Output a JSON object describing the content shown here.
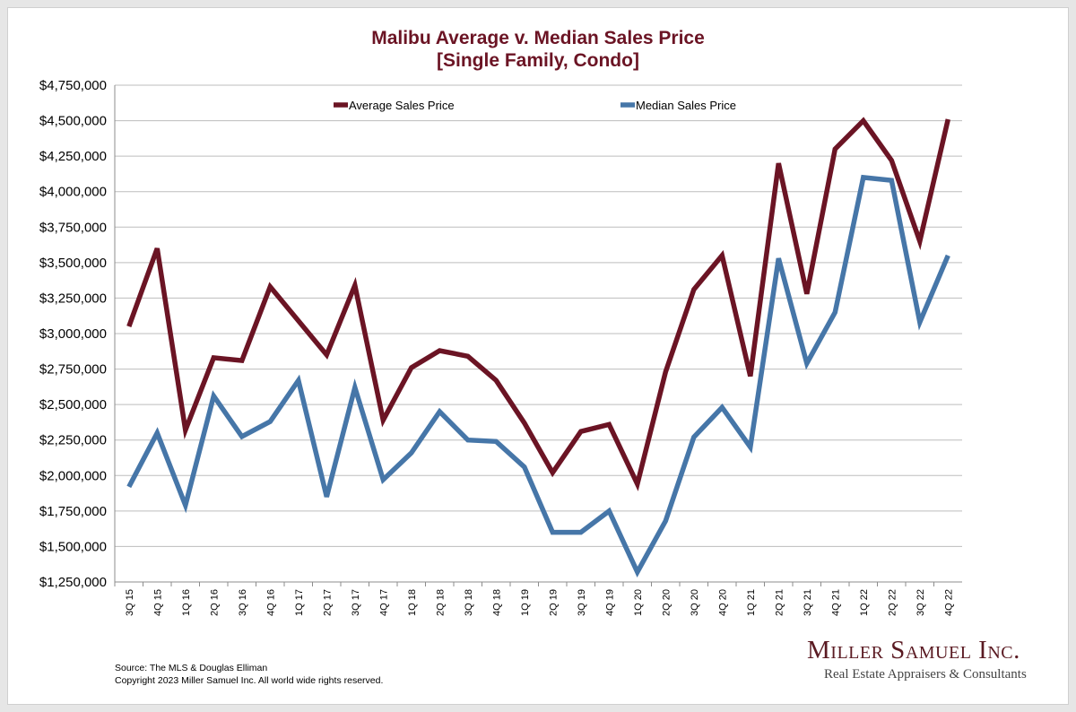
{
  "chart_data": {
    "type": "line",
    "title": "Malibu Average v. Median Sales Price",
    "subtitle": "[Single Family, Condo]",
    "categories": [
      "3Q 15",
      "4Q 15",
      "1Q 16",
      "2Q 16",
      "3Q 16",
      "4Q 16",
      "1Q 17",
      "2Q 17",
      "3Q 17",
      "4Q 17",
      "1Q 18",
      "2Q 18",
      "3Q 18",
      "4Q 18",
      "1Q 19",
      "2Q 19",
      "3Q 19",
      "4Q 19",
      "1Q 20",
      "2Q 20",
      "3Q 20",
      "4Q 20",
      "1Q 21",
      "2Q 21",
      "3Q 21",
      "4Q 21",
      "1Q 22",
      "2Q 22",
      "3Q 22",
      "4Q 22"
    ],
    "series": [
      {
        "name": "Average Sales Price",
        "color": "#6b1424",
        "values": [
          3050000,
          3600000,
          2320000,
          2830000,
          2810000,
          3330000,
          3090000,
          2850000,
          3340000,
          2390000,
          2760000,
          2880000,
          2840000,
          2670000,
          2370000,
          2020000,
          2310000,
          2360000,
          1940000,
          2730000,
          3310000,
          3550000,
          2700000,
          4200000,
          3280000,
          4300000,
          4500000,
          4220000,
          3650000,
          4510000
        ]
      },
      {
        "name": "Median Sales Price",
        "color": "#4676a8",
        "values": [
          1920000,
          2300000,
          1790000,
          2560000,
          2275000,
          2380000,
          2670000,
          1850000,
          2620000,
          1970000,
          2160000,
          2450000,
          2250000,
          2240000,
          2060000,
          1600000,
          1600000,
          1750000,
          1320000,
          1680000,
          2270000,
          2480000,
          2200000,
          3530000,
          2790000,
          3150000,
          4100000,
          4080000,
          3080000,
          3550000
        ]
      }
    ],
    "ylim": [
      1250000,
      4750000
    ],
    "yticks": [
      1250000,
      1500000,
      1750000,
      2000000,
      2250000,
      2500000,
      2750000,
      3000000,
      3250000,
      3500000,
      3750000,
      4000000,
      4250000,
      4500000,
      4750000
    ],
    "grid": true,
    "legend": "top"
  },
  "footer": {
    "source": "Source: The MLS & Douglas Elliman",
    "copyright": "Copyright 2023 Miller Samuel Inc.  All world wide rights reserved."
  },
  "brand": {
    "name": "Miller Samuel Inc.",
    "tagline": "Real Estate Appraisers & Consultants"
  }
}
